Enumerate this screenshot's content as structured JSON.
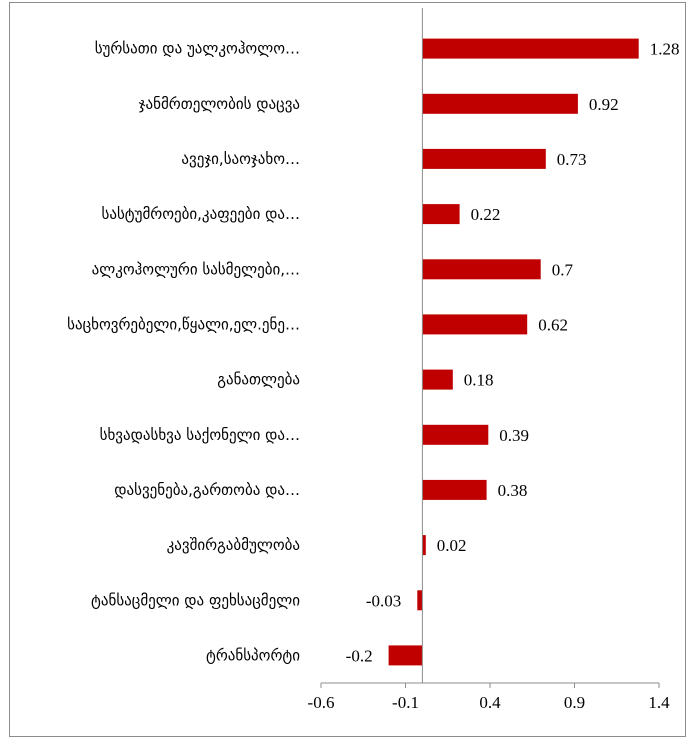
{
  "chart_data": {
    "type": "bar",
    "orientation": "horizontal",
    "categories": [
      "სურსათი და უალკოჰოლო…",
      "ჯანმრთელობის დაცვა",
      "ავეჯი,საოჯახო…",
      "სასტუმროები,კაფეები და…",
      "ალკოჰოლური სასმელები,…",
      "საცხოვრებელი,წყალი,ელ.ენე…",
      "განათლება",
      "სხვადასხვა საქონელი და…",
      "დასვენება,გართობა და…",
      "კავშირგაბმულობა",
      "ტანსაცმელი და ფეხსაცმელი",
      "ტრანსპორტი"
    ],
    "values": [
      1.28,
      0.92,
      0.73,
      0.22,
      0.7,
      0.62,
      0.18,
      0.39,
      0.38,
      0.02,
      -0.03,
      -0.2
    ],
    "value_labels": [
      "1.28",
      "0.92",
      "0.73",
      "0.22",
      "0.7",
      "0.62",
      "0.18",
      "0.39",
      "0.38",
      "0.02",
      "-0.03",
      "-0.2"
    ],
    "xlim": [
      -0.6,
      1.4
    ],
    "xticks": [
      -0.6,
      -0.1,
      0.4,
      0.9,
      1.4
    ],
    "xtick_labels": [
      "-0.6",
      "-0.1",
      "0.4",
      "0.9",
      "1.4"
    ],
    "bar_color": "#c00000",
    "grid": false,
    "title": "",
    "xlabel": "",
    "ylabel": ""
  }
}
